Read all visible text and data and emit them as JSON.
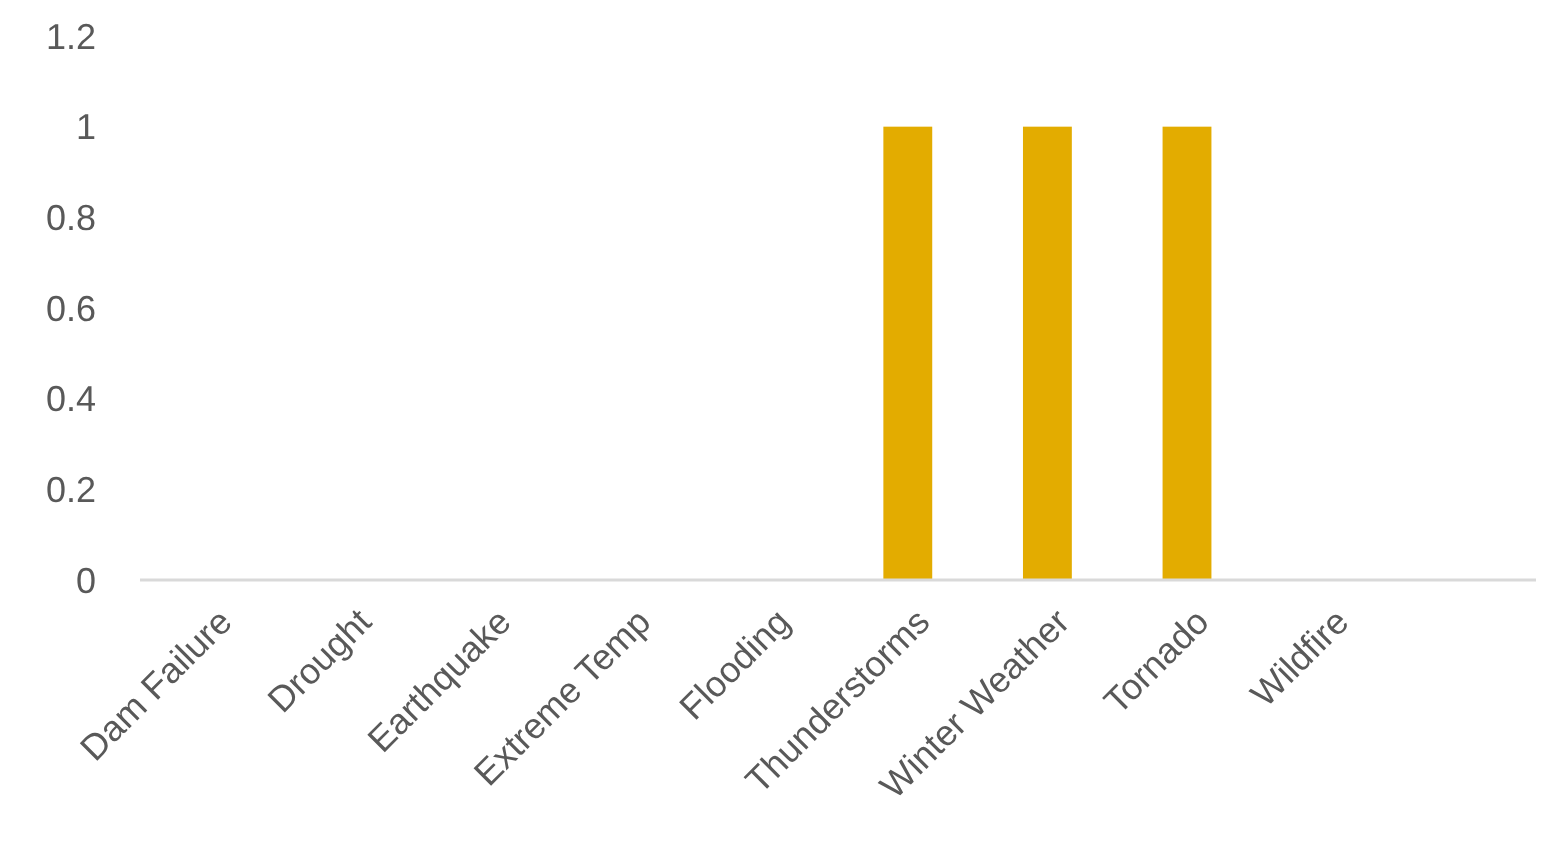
{
  "chart_data": {
    "type": "bar",
    "categories": [
      "Dam Failure",
      "Drought",
      "Earthquake",
      "Extreme Temp",
      "Flooding",
      "Thunderstorms",
      "Winter Weather",
      "Tornado",
      "Wildfire",
      null
    ],
    "values": [
      0,
      0,
      0,
      0,
      0,
      1,
      1,
      1,
      0,
      0
    ],
    "color": "#e3ac00",
    "ylim": [
      0,
      1.2
    ],
    "yticks": [
      0,
      0.2,
      0.4,
      0.6,
      0.8,
      1,
      1.2
    ],
    "grid": false
  }
}
